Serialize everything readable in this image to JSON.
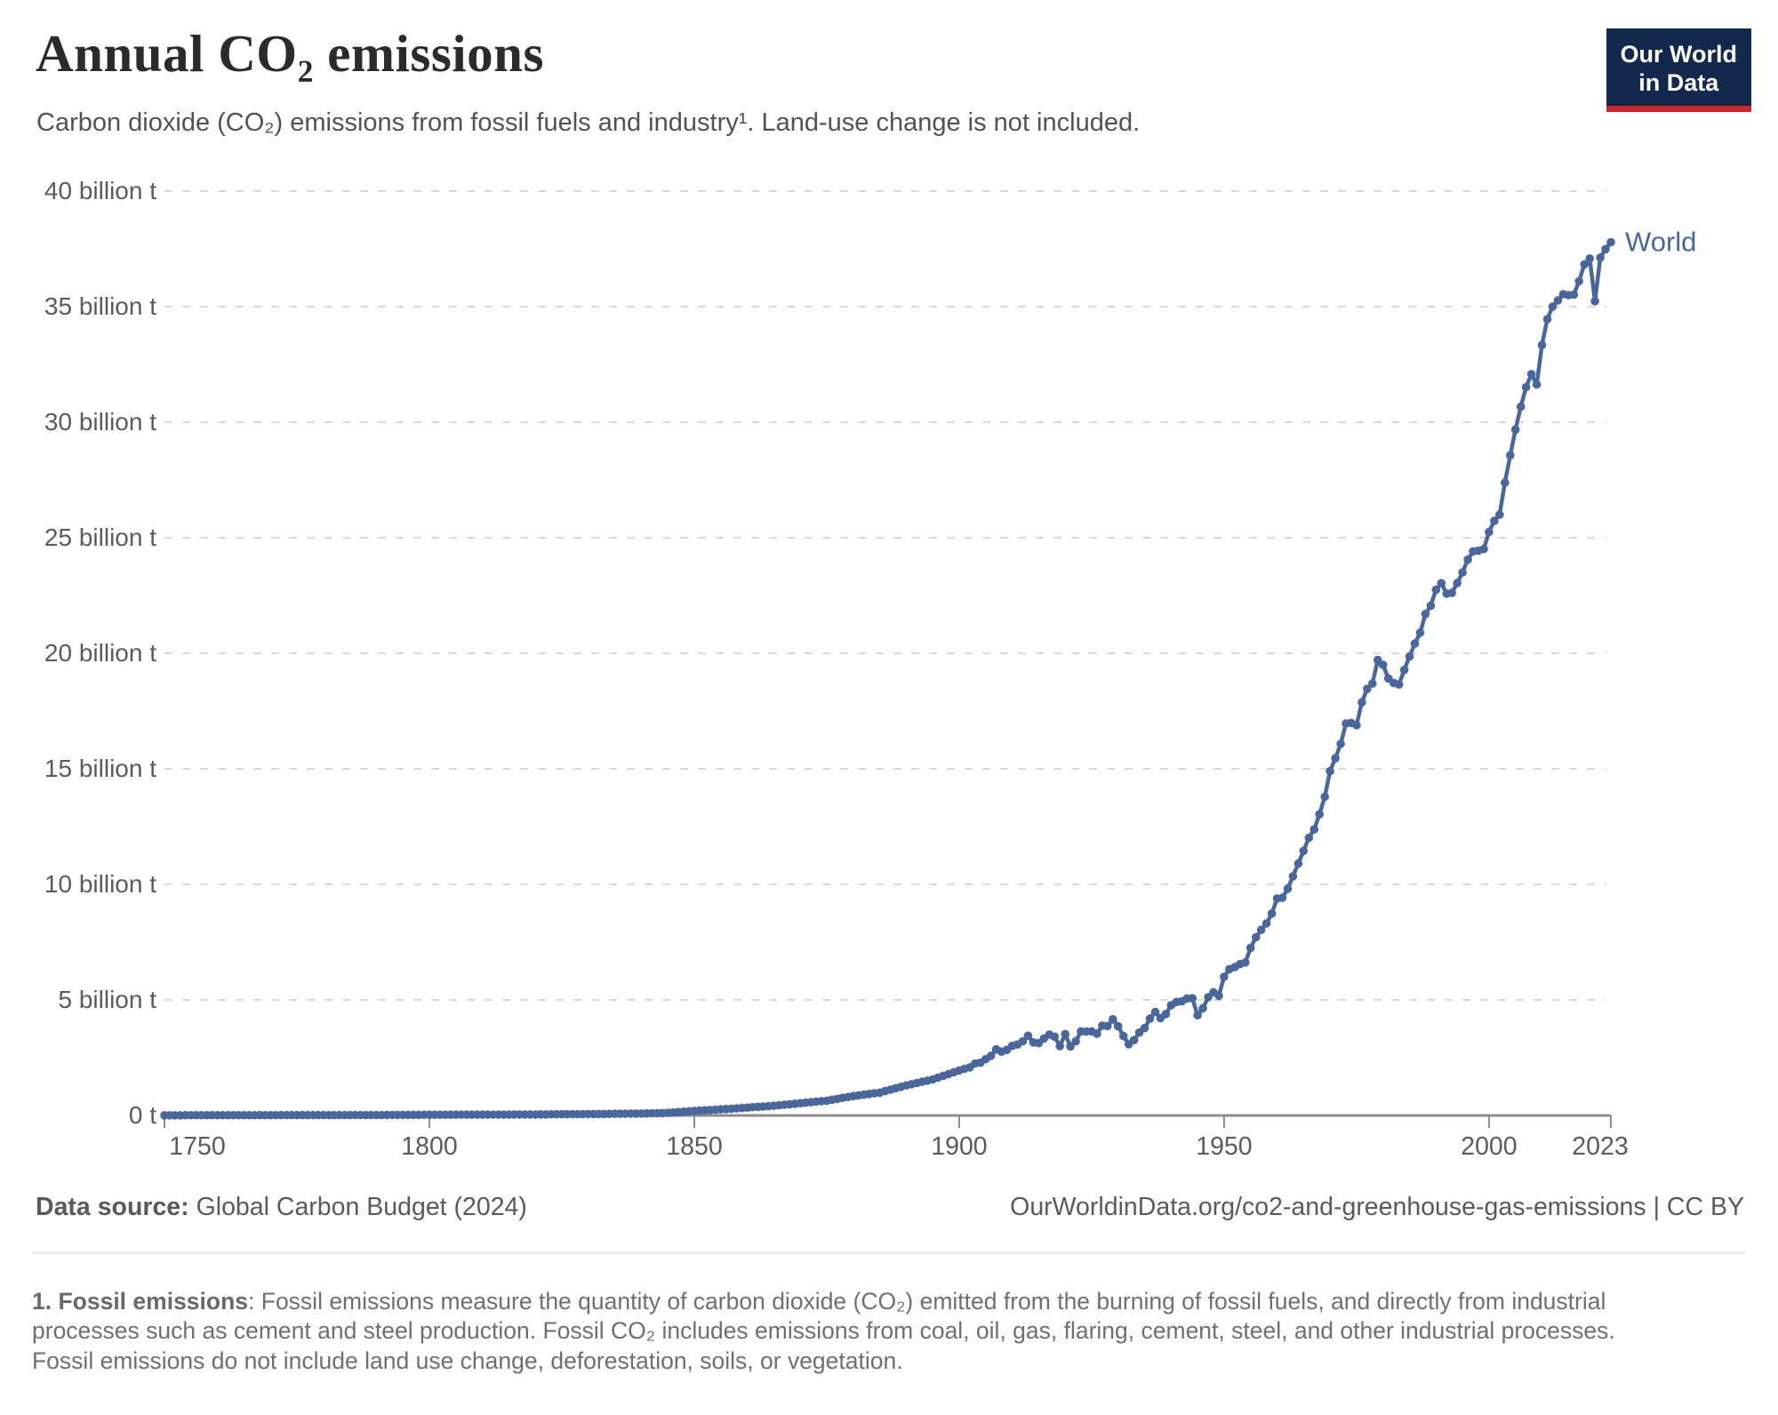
{
  "header": {
    "title": "Annual CO₂ emissions",
    "subtitle": "Carbon dioxide (CO₂) emissions from fossil fuels and industry¹. Land-use change is not included.",
    "logo": {
      "line1": "Our World",
      "line2": "in Data"
    }
  },
  "chart_data": {
    "type": "line",
    "title": "Annual CO₂ emissions",
    "unit": "billion t",
    "xlabel": "",
    "ylabel": "",
    "xlim": [
      1750,
      2023
    ],
    "ylim": [
      0,
      40
    ],
    "grid": "horizontal-dashed",
    "legend_position": "end-of-line-label",
    "line_color": "#4A679D",
    "x_ticks": [
      1750,
      1800,
      1850,
      1900,
      1950,
      2000,
      2023
    ],
    "y_ticks": [
      {
        "value": 0,
        "label": "0 t"
      },
      {
        "value": 5,
        "label": "5 billion t"
      },
      {
        "value": 10,
        "label": "10 billion t"
      },
      {
        "value": 15,
        "label": "15 billion t"
      },
      {
        "value": 20,
        "label": "20 billion t"
      },
      {
        "value": 25,
        "label": "25 billion t"
      },
      {
        "value": 30,
        "label": "30 billion t"
      },
      {
        "value": 35,
        "label": "35 billion t"
      },
      {
        "value": 40,
        "label": "40 billion t"
      }
    ],
    "series": [
      {
        "name": "World",
        "color": "#4A679D",
        "points": [
          [
            1750,
            0.009
          ],
          [
            1760,
            0.011
          ],
          [
            1770,
            0.013
          ],
          [
            1780,
            0.016
          ],
          [
            1790,
            0.019
          ],
          [
            1800,
            0.03
          ],
          [
            1810,
            0.036
          ],
          [
            1820,
            0.044
          ],
          [
            1830,
            0.06
          ],
          [
            1840,
            0.084
          ],
          [
            1845,
            0.11
          ],
          [
            1850,
            0.197
          ],
          [
            1855,
            0.26
          ],
          [
            1860,
            0.34
          ],
          [
            1865,
            0.42
          ],
          [
            1870,
            0.53
          ],
          [
            1875,
            0.64
          ],
          [
            1880,
            0.84
          ],
          [
            1885,
            0.99
          ],
          [
            1890,
            1.3
          ],
          [
            1895,
            1.56
          ],
          [
            1900,
            1.95
          ],
          [
            1901,
            2.02
          ],
          [
            1902,
            2.08
          ],
          [
            1903,
            2.25
          ],
          [
            1904,
            2.28
          ],
          [
            1905,
            2.44
          ],
          [
            1906,
            2.58
          ],
          [
            1907,
            2.86
          ],
          [
            1908,
            2.76
          ],
          [
            1909,
            2.84
          ],
          [
            1910,
            3.01
          ],
          [
            1911,
            3.07
          ],
          [
            1912,
            3.21
          ],
          [
            1913,
            3.45
          ],
          [
            1914,
            3.16
          ],
          [
            1915,
            3.13
          ],
          [
            1916,
            3.33
          ],
          [
            1917,
            3.5
          ],
          [
            1918,
            3.41
          ],
          [
            1919,
            3.0
          ],
          [
            1920,
            3.52
          ],
          [
            1921,
            2.99
          ],
          [
            1922,
            3.21
          ],
          [
            1923,
            3.64
          ],
          [
            1924,
            3.63
          ],
          [
            1925,
            3.64
          ],
          [
            1926,
            3.54
          ],
          [
            1927,
            3.89
          ],
          [
            1928,
            3.87
          ],
          [
            1929,
            4.16
          ],
          [
            1930,
            3.86
          ],
          [
            1931,
            3.44
          ],
          [
            1932,
            3.08
          ],
          [
            1933,
            3.26
          ],
          [
            1934,
            3.59
          ],
          [
            1935,
            3.78
          ],
          [
            1936,
            4.19
          ],
          [
            1937,
            4.48
          ],
          [
            1938,
            4.21
          ],
          [
            1939,
            4.39
          ],
          [
            1940,
            4.77
          ],
          [
            1941,
            4.91
          ],
          [
            1942,
            4.94
          ],
          [
            1943,
            5.06
          ],
          [
            1944,
            5.07
          ],
          [
            1945,
            4.34
          ],
          [
            1946,
            4.64
          ],
          [
            1947,
            5.12
          ],
          [
            1948,
            5.33
          ],
          [
            1949,
            5.18
          ],
          [
            1950,
            6.0
          ],
          [
            1951,
            6.33
          ],
          [
            1952,
            6.42
          ],
          [
            1953,
            6.55
          ],
          [
            1954,
            6.62
          ],
          [
            1955,
            7.25
          ],
          [
            1956,
            7.71
          ],
          [
            1957,
            8.03
          ],
          [
            1958,
            8.31
          ],
          [
            1959,
            8.74
          ],
          [
            1960,
            9.39
          ],
          [
            1961,
            9.42
          ],
          [
            1962,
            9.81
          ],
          [
            1963,
            10.35
          ],
          [
            1964,
            10.9
          ],
          [
            1965,
            11.45
          ],
          [
            1966,
            12.02
          ],
          [
            1967,
            12.38
          ],
          [
            1968,
            13.03
          ],
          [
            1969,
            13.79
          ],
          [
            1970,
            14.9
          ],
          [
            1971,
            15.46
          ],
          [
            1972,
            16.08
          ],
          [
            1973,
            16.96
          ],
          [
            1974,
            16.99
          ],
          [
            1975,
            16.89
          ],
          [
            1976,
            17.88
          ],
          [
            1977,
            18.46
          ],
          [
            1978,
            18.69
          ],
          [
            1979,
            19.71
          ],
          [
            1980,
            19.5
          ],
          [
            1981,
            18.91
          ],
          [
            1982,
            18.72
          ],
          [
            1983,
            18.65
          ],
          [
            1984,
            19.28
          ],
          [
            1985,
            19.86
          ],
          [
            1986,
            20.42
          ],
          [
            1987,
            20.89
          ],
          [
            1988,
            21.7
          ],
          [
            1989,
            22.06
          ],
          [
            1990,
            22.75
          ],
          [
            1991,
            23.03
          ],
          [
            1992,
            22.58
          ],
          [
            1993,
            22.61
          ],
          [
            1994,
            23.04
          ],
          [
            1995,
            23.5
          ],
          [
            1996,
            24.05
          ],
          [
            1997,
            24.41
          ],
          [
            1998,
            24.44
          ],
          [
            1999,
            24.51
          ],
          [
            2000,
            25.25
          ],
          [
            2001,
            25.73
          ],
          [
            2002,
            26.0
          ],
          [
            2003,
            27.38
          ],
          [
            2004,
            28.57
          ],
          [
            2005,
            29.68
          ],
          [
            2006,
            30.67
          ],
          [
            2007,
            31.51
          ],
          [
            2008,
            32.08
          ],
          [
            2009,
            31.63
          ],
          [
            2010,
            33.34
          ],
          [
            2011,
            34.46
          ],
          [
            2012,
            35.0
          ],
          [
            2013,
            35.27
          ],
          [
            2014,
            35.54
          ],
          [
            2015,
            35.5
          ],
          [
            2016,
            35.52
          ],
          [
            2017,
            36.1
          ],
          [
            2018,
            36.83
          ],
          [
            2019,
            37.08
          ],
          [
            2020,
            35.24
          ],
          [
            2021,
            37.12
          ],
          [
            2022,
            37.49
          ],
          [
            2023,
            37.79
          ]
        ]
      }
    ]
  },
  "footer": {
    "datasource_label": "Data source:",
    "datasource_value": " Global Carbon Budget (2024)",
    "attribution": "OurWorldinData.org/co2-and-greenhouse-gas-emissions | CC BY",
    "note_label": "1. Fossil emissions",
    "note_text": ": Fossil emissions measure the quantity of carbon dioxide (CO₂) emitted from the burning of fossil fuels, and directly from industrial processes such as cement and steel production. Fossil CO₂ includes emissions from coal, oil, gas, flaring, cement, steel, and other industrial processes. Fossil emissions do not include land use change, deforestation, soils, or vegetation."
  }
}
